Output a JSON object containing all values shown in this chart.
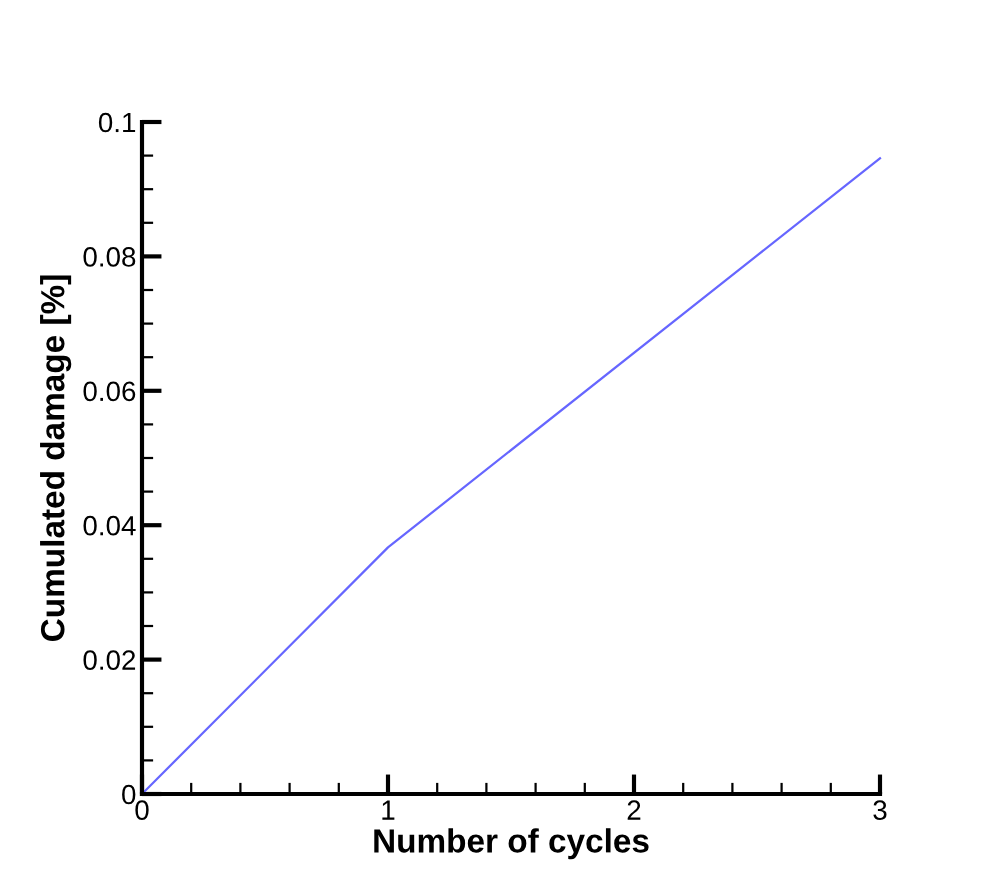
{
  "chart_data": {
    "type": "line",
    "xlabel": "Number of cycles",
    "ylabel": "Cumulated damage [%]",
    "x": [
      0,
      1,
      3
    ],
    "series": [
      {
        "color": "#6666ff",
        "values": [
          0,
          0.0367,
          0.0946
        ]
      }
    ],
    "xlim": [
      0,
      3
    ],
    "xticks": [
      0,
      1,
      2,
      3
    ],
    "ylim": [
      0,
      0.1
    ],
    "yticks": [
      0,
      0.02,
      0.04,
      0.06,
      0.08,
      0.1
    ],
    "grid": false,
    "legend": false,
    "marker": "none",
    "line_style": "solid"
  }
}
